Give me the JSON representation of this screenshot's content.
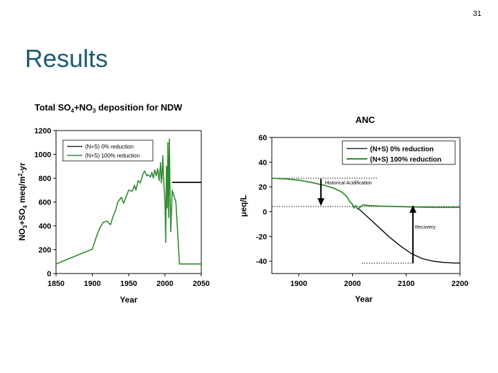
{
  "page_number": "31",
  "slide_title": "Results",
  "colors": {
    "title": "#1d5a73",
    "series_0pct": "#000000",
    "series_100pct": "#2e8b2e"
  },
  "chart_data": [
    {
      "type": "line",
      "title_parts": [
        "Total SO",
        "4",
        "+NO",
        "3",
        " deposition for NDW"
      ],
      "xlabel": "Year",
      "ylabel_parts": [
        "NO",
        "3",
        "+SO",
        "4",
        " meq/m",
        "2",
        "-yr"
      ],
      "xlim": [
        1850,
        2050
      ],
      "ylim": [
        0,
        1200
      ],
      "xticks": [
        1850,
        1900,
        1950,
        2000,
        2050
      ],
      "yticks": [
        0,
        200,
        400,
        600,
        800,
        1000,
        1200
      ],
      "legend_position": "top-left",
      "series": [
        {
          "name": "(N+S) 0% reduction",
          "color": "#000000",
          "x": [
            2010,
            2050
          ],
          "y": [
            765,
            765
          ]
        },
        {
          "name": "(N+S) 100% reduction",
          "color": "#2e8b2e",
          "x": [
            1850,
            1860,
            1870,
            1880,
            1890,
            1900,
            1905,
            1910,
            1915,
            1920,
            1925,
            1928,
            1932,
            1935,
            1940,
            1943,
            1947,
            1950,
            1955,
            1958,
            1960,
            1963,
            1966,
            1968,
            1970,
            1972,
            1975,
            1977,
            1980,
            1982,
            1984,
            1986,
            1988,
            1990,
            1992,
            1994,
            1995,
            1996,
            1997,
            1998,
            1999,
            2000,
            2001,
            2002,
            2003,
            2004,
            2005,
            2006,
            2007,
            2008,
            2010,
            2015,
            2020,
            2050
          ],
          "y": [
            80,
            105,
            130,
            155,
            180,
            205,
            300,
            380,
            430,
            440,
            410,
            470,
            530,
            600,
            640,
            590,
            650,
            700,
            690,
            740,
            700,
            780,
            760,
            800,
            840,
            860,
            820,
            830,
            810,
            850,
            800,
            870,
            820,
            880,
            780,
            930,
            760,
            820,
            990,
            820,
            700,
            600,
            260,
            900,
            550,
            1100,
            470,
            1130,
            700,
            350,
            700,
            600,
            80,
            80
          ]
        }
      ]
    },
    {
      "type": "line",
      "title": "ANC",
      "xlabel": "Year",
      "ylabel": "μeq/L",
      "xlim": [
        1850,
        2200
      ],
      "ylim": [
        -50,
        60
      ],
      "xticks": [
        1900,
        2000,
        2100,
        2200
      ],
      "yticks": [
        60,
        40,
        20,
        0,
        -20,
        -40
      ],
      "legend_position": "top-right",
      "annotations": [
        "Historical Acidification",
        "Recovery"
      ],
      "series": [
        {
          "name": "(N+S) 0% reduction",
          "color": "#000000",
          "x": [
            2010,
            2030,
            2050,
            2070,
            2090,
            2110,
            2130,
            2150,
            2170,
            2190,
            2200
          ],
          "y": [
            3,
            -5,
            -13,
            -21,
            -28,
            -34,
            -38,
            -40,
            -41,
            -41.5,
            -41.5
          ]
        },
        {
          "name": "(N+S) 100% reduction",
          "color": "#2e8b2e",
          "x": [
            1850,
            1875,
            1900,
            1925,
            1950,
            1965,
            1980,
            1990,
            1995,
            2000,
            2003,
            2006,
            2010,
            2015,
            2020,
            2030,
            2050,
            2100,
            2150,
            2200
          ],
          "y": [
            27,
            26.5,
            25.5,
            23.5,
            21,
            19,
            16,
            12,
            8,
            6,
            3,
            5,
            2,
            4,
            5.5,
            5,
            4.5,
            4,
            3.5,
            3.5
          ]
        }
      ]
    }
  ]
}
